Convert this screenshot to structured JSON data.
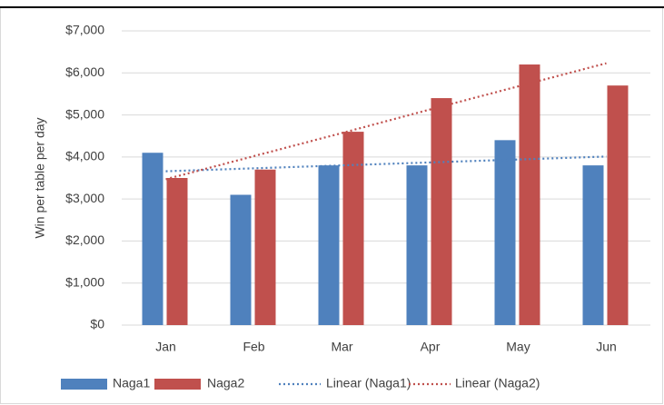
{
  "chart_data": {
    "type": "bar",
    "y_label": "Win per table per day",
    "categories": [
      "Jan",
      "Feb",
      "Mar",
      "Apr",
      "May",
      "Jun"
    ],
    "series": [
      {
        "name": "Naga1",
        "color": "#4f81bd",
        "values": [
          4100,
          3100,
          3800,
          3800,
          4400,
          3800
        ]
      },
      {
        "name": "Naga2",
        "color": "#c0504d",
        "values": [
          3500,
          3700,
          4600,
          5400,
          6200,
          5700
        ]
      }
    ],
    "trendlines": [
      {
        "name": "Linear (Naga1)",
        "color": "#4f81bd",
        "values": [
          3660,
          3730,
          3800,
          3870,
          3940,
          4010
        ]
      },
      {
        "name": "Linear (Naga2)",
        "color": "#c0504d",
        "values": [
          3470,
          4020,
          4570,
          5130,
          5680,
          6230
        ]
      }
    ],
    "ylim": [
      0,
      7000
    ],
    "yticks": [
      {
        "value": 0,
        "label": "$0"
      },
      {
        "value": 1000,
        "label": "$1,000"
      },
      {
        "value": 2000,
        "label": "$2,000"
      },
      {
        "value": 3000,
        "label": "$3,000"
      },
      {
        "value": 4000,
        "label": "$4,000"
      },
      {
        "value": 5000,
        "label": "$5,000"
      },
      {
        "value": 6000,
        "label": "$6,000"
      },
      {
        "value": 7000,
        "label": "$7,000"
      }
    ],
    "grid": true
  }
}
